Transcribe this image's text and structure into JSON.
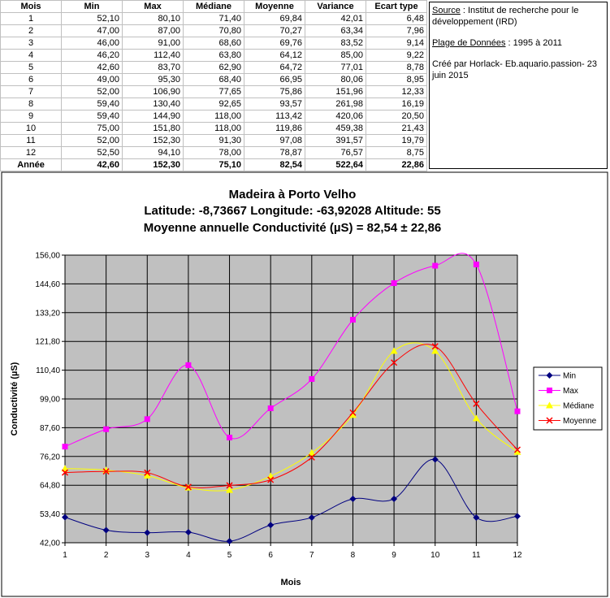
{
  "table": {
    "headers": [
      "Mois",
      "Min",
      "Max",
      "Médiane",
      "Moyenne",
      "Variance",
      "Ecart type"
    ],
    "rows": [
      [
        "1",
        "52,10",
        "80,10",
        "71,40",
        "69,84",
        "42,01",
        "6,48"
      ],
      [
        "2",
        "47,00",
        "87,00",
        "70,80",
        "70,27",
        "63,34",
        "7,96"
      ],
      [
        "3",
        "46,00",
        "91,00",
        "68,60",
        "69,76",
        "83,52",
        "9,14"
      ],
      [
        "4",
        "46,20",
        "112,40",
        "63,80",
        "64,12",
        "85,00",
        "9,22"
      ],
      [
        "5",
        "42,60",
        "83,70",
        "62,90",
        "64,72",
        "77,01",
        "8,78"
      ],
      [
        "6",
        "49,00",
        "95,30",
        "68,40",
        "66,95",
        "80,06",
        "8,95"
      ],
      [
        "7",
        "52,00",
        "106,90",
        "77,65",
        "75,86",
        "151,96",
        "12,33"
      ],
      [
        "8",
        "59,40",
        "130,40",
        "92,65",
        "93,57",
        "261,98",
        "16,19"
      ],
      [
        "9",
        "59,40",
        "144,90",
        "118,00",
        "113,42",
        "420,06",
        "20,50"
      ],
      [
        "10",
        "75,00",
        "151,80",
        "118,00",
        "119,86",
        "459,38",
        "21,43"
      ],
      [
        "11",
        "52,00",
        "152,30",
        "91,30",
        "97,08",
        "391,57",
        "19,79"
      ],
      [
        "12",
        "52,50",
        "94,10",
        "78,00",
        "78,87",
        "76,57",
        "8,75"
      ]
    ],
    "footer": [
      "Année",
      "42,60",
      "152,30",
      "75,10",
      "82,54",
      "522,64",
      "22,86"
    ]
  },
  "note": {
    "source_label": "Source",
    "source_text": ": Institut de recherche pour le développement (IRD)",
    "range_label": "Plage de Données",
    "range_text": ": 1995 à 2011",
    "credit": "Créé par Horlack- Eb.aquario.passion- 23 juin 2015"
  },
  "chart_data": {
    "type": "line",
    "title": "Madeira à Porto Velho",
    "subtitle": [
      "Latitude: -8,73667 Longitude: -63,92028 Altitude: 55",
      "Moyenne annuelle Conductivité (µS) = 82,54 ± 22,86"
    ],
    "x_label": "Mois",
    "y_label": "Conductivité (µS)",
    "x": [
      1,
      2,
      3,
      4,
      5,
      6,
      7,
      8,
      9,
      10,
      11,
      12
    ],
    "xlim": [
      1,
      12
    ],
    "xticks": [
      1,
      2,
      3,
      4,
      5,
      6,
      7,
      8,
      9,
      10,
      11,
      12
    ],
    "ylim": [
      42,
      156
    ],
    "yticks": [
      {
        "value": 42,
        "label": "42,00"
      },
      {
        "value": 53.4,
        "label": "53,40"
      },
      {
        "value": 64.8,
        "label": "64,80"
      },
      {
        "value": 76.2,
        "label": "76,20"
      },
      {
        "value": 87.6,
        "label": "87,60"
      },
      {
        "value": 99,
        "label": "99,00"
      },
      {
        "value": 110.4,
        "label": "110,40"
      },
      {
        "value": 121.8,
        "label": "121,80"
      },
      {
        "value": 133.2,
        "label": "133,20"
      },
      {
        "value": 144.6,
        "label": "144,60"
      },
      {
        "value": 156,
        "label": "156,00"
      }
    ],
    "grid": true,
    "smooth": true,
    "legend": "right",
    "series": [
      {
        "name": "Min",
        "color": "#000080",
        "marker": "diamond",
        "values": [
          52.1,
          47,
          46,
          46.2,
          42.6,
          49,
          52,
          59.4,
          59.4,
          75,
          52,
          52.5
        ]
      },
      {
        "name": "Max",
        "color": "#ff00ff",
        "marker": "square",
        "values": [
          80.1,
          87,
          91,
          112.4,
          83.7,
          95.3,
          106.9,
          130.4,
          144.9,
          151.8,
          152.3,
          94.1
        ]
      },
      {
        "name": "Médiane",
        "color": "#ffff00",
        "marker": "triangle",
        "values": [
          71.4,
          70.8,
          68.6,
          63.8,
          62.9,
          68.4,
          77.65,
          92.65,
          118,
          118,
          91.3,
          78
        ]
      },
      {
        "name": "Moyenne",
        "color": "#ff0000",
        "marker": "cross",
        "values": [
          69.84,
          70.27,
          69.76,
          64.12,
          64.72,
          66.95,
          75.86,
          93.57,
          113.42,
          119.86,
          97.08,
          78.87
        ]
      }
    ]
  }
}
